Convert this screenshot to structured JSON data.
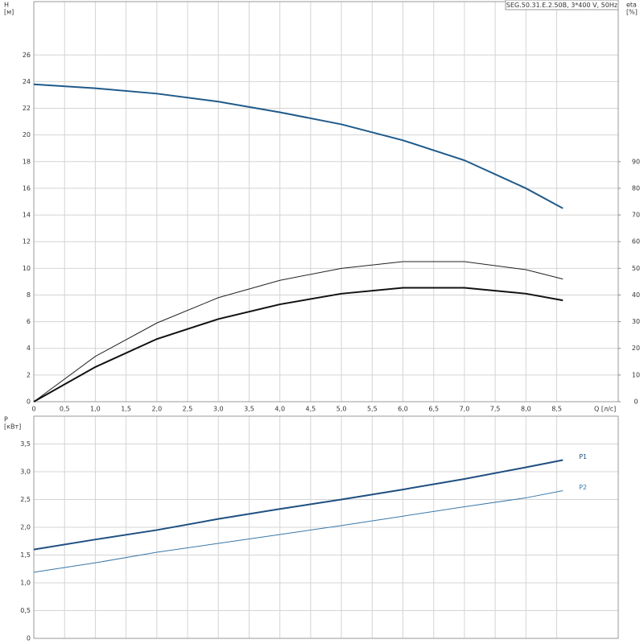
{
  "chart_data": [
    {
      "type": "line",
      "title": "SEG.50.31.E.2.50B, 3*400 V, 50Hz",
      "ylabel": [
        "H",
        "[м]"
      ],
      "y2label": [
        "eta",
        "[%]"
      ],
      "xlabel": "Q [л/с]",
      "xlim": [
        0,
        9.5
      ],
      "xticks": [
        0,
        {
          "value": 0.5,
          "label": "0,5"
        },
        {
          "value": 1,
          "label": "1,0"
        },
        {
          "value": 1.5,
          "label": "1,5"
        },
        {
          "value": 2,
          "label": "2,0"
        },
        {
          "value": 2.5,
          "label": "2,5"
        },
        {
          "value": 3,
          "label": "3,0"
        },
        {
          "value": 3.5,
          "label": "3,5"
        },
        {
          "value": 4,
          "label": "4,0"
        },
        {
          "value": 4.5,
          "label": "4,5"
        },
        {
          "value": 5,
          "label": "5,0"
        },
        {
          "value": 5.5,
          "label": "5,5"
        },
        {
          "value": 6,
          "label": "6,0"
        },
        {
          "value": 6.5,
          "label": "6,5"
        },
        {
          "value": 7,
          "label": "7,0"
        },
        {
          "value": 7.5,
          "label": "7,5"
        },
        {
          "value": 8,
          "label": "8,0"
        },
        {
          "value": 8.5,
          "label": "8,5"
        }
      ],
      "show_xtick_labels": true,
      "ylim": [
        0,
        30
      ],
      "yticks": [
        0,
        2,
        4,
        6,
        8,
        10,
        12,
        14,
        16,
        18,
        20,
        22,
        24,
        26
      ],
      "y2lim": [
        0,
        150
      ],
      "y2ticks": [
        0,
        10,
        20,
        30,
        40,
        50,
        60,
        70,
        80,
        90
      ],
      "grid": true,
      "x": [
        0,
        1,
        2,
        3,
        4,
        5,
        6,
        7,
        8,
        8.6
      ],
      "series": [
        {
          "color": "#1f5a8a",
          "width": 2,
          "values": [
            23.8,
            23.5,
            23.1,
            22.5,
            21.7,
            20.8,
            19.6,
            18.1,
            16.0,
            14.5
          ]
        },
        {
          "color": "#222222",
          "width": 1,
          "axis": "y2",
          "values": [
            0,
            17,
            29.5,
            39,
            45.5,
            50,
            52.5,
            52.5,
            49.5,
            46
          ]
        },
        {
          "color": "#111111",
          "width": 2,
          "axis": "y2",
          "values": [
            0,
            13,
            23.5,
            31,
            36.5,
            40.5,
            42.7,
            42.7,
            40.5,
            38
          ]
        }
      ]
    },
    {
      "type": "line",
      "ylabel": [
        "P",
        "[кВт]"
      ],
      "xlim": [
        0,
        9.5
      ],
      "xticks": [
        0,
        0.5,
        1,
        1.5,
        2,
        2.5,
        3,
        3.5,
        4,
        4.5,
        5,
        5.5,
        6,
        6.5,
        7,
        7.5,
        8,
        8.5
      ],
      "show_xtick_labels": false,
      "ylim": [
        0,
        4
      ],
      "yticks": [
        0,
        {
          "value": 0.5,
          "label": "0,5"
        },
        {
          "value": 1,
          "label": "1,0"
        },
        {
          "value": 1.5,
          "label": "1,5"
        },
        {
          "value": 2,
          "label": "2,0"
        },
        {
          "value": 2.5,
          "label": "2,5"
        },
        {
          "value": 3,
          "label": "3,0"
        },
        {
          "value": 3.5,
          "label": "3,5"
        }
      ],
      "grid": true,
      "x": [
        0,
        1,
        2,
        3,
        4,
        5,
        6,
        7,
        8,
        8.6
      ],
      "series": [
        {
          "name": "P1",
          "color": "#1f4f80",
          "width": 2,
          "values": [
            1.6,
            1.78,
            1.95,
            2.15,
            2.33,
            2.5,
            2.68,
            2.87,
            3.08,
            3.21
          ]
        },
        {
          "name": "P2",
          "color": "#3a78a8",
          "width": 1,
          "values": [
            1.19,
            1.36,
            1.55,
            1.71,
            1.87,
            2.03,
            2.2,
            2.37,
            2.53,
            2.66
          ]
        }
      ]
    }
  ]
}
